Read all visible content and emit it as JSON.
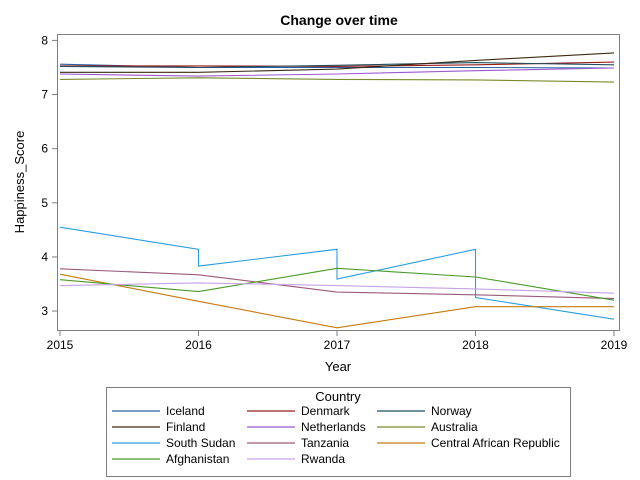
{
  "chart_data": {
    "type": "line",
    "title": "Change over time",
    "xlabel": "Year",
    "ylabel": "Happiness_Score",
    "x_ticks": [
      "2015",
      "2016",
      "2017",
      "2018",
      "2019"
    ],
    "y_ticks": [
      "3",
      "4",
      "5",
      "6",
      "7",
      "8"
    ],
    "xlim": [
      2015,
      2019
    ],
    "ylim": [
      2.65,
      8.1
    ],
    "grid": false,
    "legend": {
      "title": "Country",
      "position": "bottom",
      "columns": 3
    },
    "series": [
      {
        "name": "Iceland",
        "color": "#2a5f9e",
        "points": [
          [
            2015,
            7.56
          ],
          [
            2016,
            7.5
          ],
          [
            2017,
            7.5
          ],
          [
            2018,
            7.5
          ],
          [
            2019,
            7.49
          ]
        ]
      },
      {
        "name": "Denmark",
        "color": "#9b1c1c",
        "points": [
          [
            2015,
            7.53
          ],
          [
            2016,
            7.53
          ],
          [
            2017,
            7.52
          ],
          [
            2018,
            7.55
          ],
          [
            2019,
            7.6
          ]
        ]
      },
      {
        "name": "Norway",
        "color": "#1f4e5f",
        "points": [
          [
            2015,
            7.52
          ],
          [
            2016,
            7.5
          ],
          [
            2017,
            7.54
          ],
          [
            2018,
            7.59
          ],
          [
            2019,
            7.55
          ]
        ]
      },
      {
        "name": "Finland",
        "color": "#3d2b12",
        "points": [
          [
            2015,
            7.41
          ],
          [
            2016,
            7.41
          ],
          [
            2017,
            7.47
          ],
          [
            2018,
            7.63
          ],
          [
            2019,
            7.77
          ]
        ]
      },
      {
        "name": "Netherlands",
        "color": "#9b59d0",
        "points": [
          [
            2015,
            7.38
          ],
          [
            2016,
            7.34
          ],
          [
            2017,
            7.38
          ],
          [
            2018,
            7.44
          ],
          [
            2019,
            7.49
          ]
        ]
      },
      {
        "name": "Australia",
        "color": "#7a8a2a",
        "points": [
          [
            2015,
            7.28
          ],
          [
            2016,
            7.31
          ],
          [
            2017,
            7.28
          ],
          [
            2018,
            7.27
          ],
          [
            2019,
            7.23
          ]
        ]
      },
      {
        "name": "South Sudan",
        "color": "#2a9de0",
        "points": [
          [
            2015,
            4.55
          ],
          [
            2016,
            4.14
          ],
          [
            2016,
            3.83
          ],
          [
            2017,
            4.14
          ],
          [
            2017,
            3.59
          ],
          [
            2018,
            4.14
          ],
          [
            2018,
            3.25
          ],
          [
            2019,
            2.85
          ]
        ]
      },
      {
        "name": "Tanzania",
        "color": "#9b5a7a",
        "points": [
          [
            2015,
            3.78
          ],
          [
            2016,
            3.67
          ],
          [
            2017,
            3.35
          ],
          [
            2018,
            3.3
          ],
          [
            2019,
            3.23
          ]
        ]
      },
      {
        "name": "Central African Republic",
        "color": "#c77a10",
        "points": [
          [
            2015,
            3.68
          ],
          [
            2016,
            3.18
          ],
          [
            2017,
            2.69
          ],
          [
            2018,
            3.08
          ],
          [
            2019,
            3.08
          ]
        ]
      },
      {
        "name": "Afghanistan",
        "color": "#4a9a2a",
        "points": [
          [
            2015,
            3.58
          ],
          [
            2016,
            3.36
          ],
          [
            2017,
            3.79
          ],
          [
            2018,
            3.63
          ],
          [
            2019,
            3.2
          ]
        ]
      },
      {
        "name": "Rwanda",
        "color": "#c7a2e8",
        "points": [
          [
            2015,
            3.47
          ],
          [
            2016,
            3.52
          ],
          [
            2017,
            3.47
          ],
          [
            2018,
            3.41
          ],
          [
            2019,
            3.33
          ]
        ]
      }
    ]
  }
}
